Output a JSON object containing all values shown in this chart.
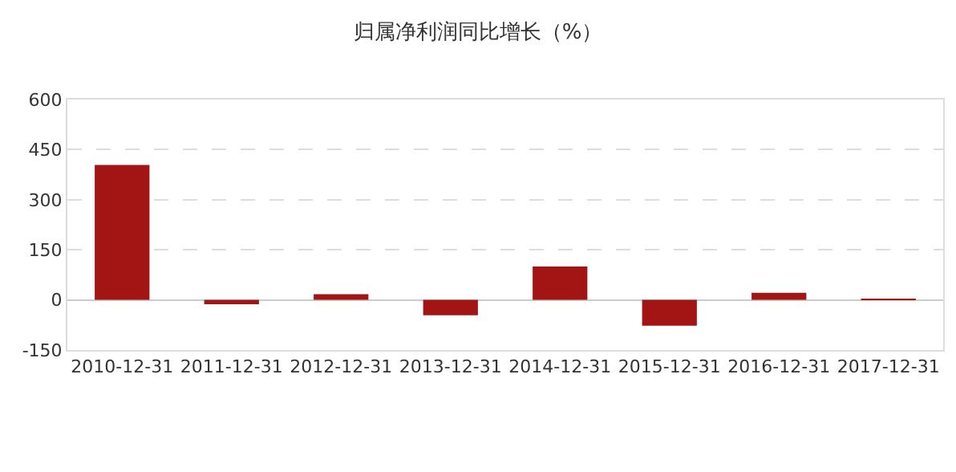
{
  "chart_data": {
    "type": "bar",
    "title": "归属净利润同比增长（%）",
    "categories": [
      "2010-12-31",
      "2011-12-31",
      "2012-12-31",
      "2013-12-31",
      "2014-12-31",
      "2015-12-31",
      "2016-12-31",
      "2017-12-31"
    ],
    "values": [
      404,
      -13,
      17,
      -46,
      100,
      -77,
      21,
      3
    ],
    "color": "#a31515",
    "ylim": [
      -150,
      600
    ],
    "yticks": [
      -150,
      0,
      150,
      300,
      450,
      600
    ],
    "grid": "y"
  }
}
